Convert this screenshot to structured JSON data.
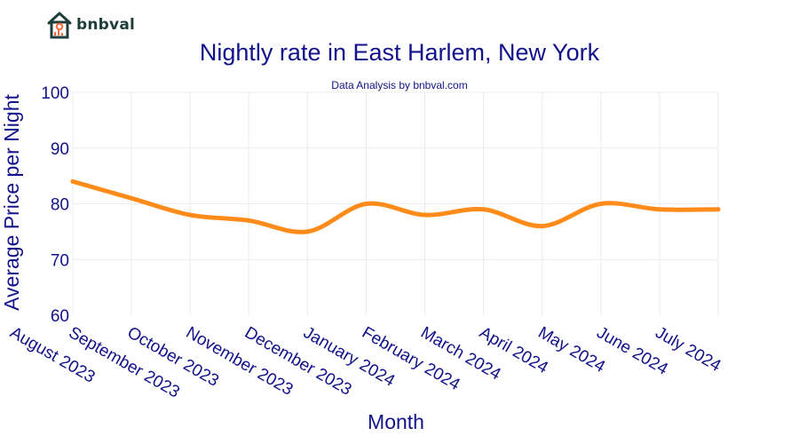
{
  "brand": {
    "name": "bnbval"
  },
  "chart_data": {
    "type": "line",
    "title": "Nightly rate in East Harlem, New York",
    "subtitle": "Data Analysis by bnbval.com",
    "xlabel": "Month",
    "ylabel": "Average Price per Night",
    "categories": [
      "August 2023",
      "September 2023",
      "October 2023",
      "November 2023",
      "December 2023",
      "January 2024",
      "February 2024",
      "March 2024",
      "April 2024",
      "May 2024",
      "June 2024",
      "July 2024"
    ],
    "series": [
      {
        "values": [
          84,
          81,
          78,
          77,
          75,
          80,
          78,
          79,
          76,
          80,
          79,
          79
        ],
        "color": "#ff8c1a"
      }
    ],
    "ylim": [
      60,
      100
    ],
    "yticks": [
      60,
      70,
      80,
      90,
      100
    ],
    "grid": true,
    "legend": "none"
  }
}
